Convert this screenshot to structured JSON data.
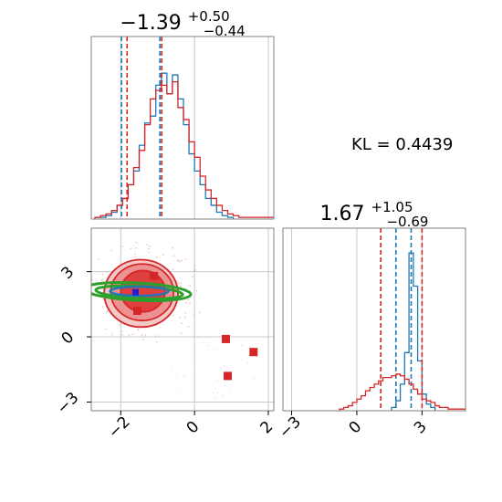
{
  "colors": {
    "blue": "#1f77b4",
    "red": "#d62728",
    "green": "#2ca02c",
    "grid": "#c8c8c8",
    "frame": "#808080"
  },
  "annotation": {
    "kl": "KL = 0.4439"
  },
  "chart_data": [
    {
      "type": "histogram",
      "panel": "top-left marginal (parameter 1)",
      "title": {
        "base": "−1.39",
        "sup": "+0.50",
        "sub": "−0.44"
      },
      "xlim": [
        -2.8,
        2.15
      ],
      "ylim": [
        0,
        1
      ],
      "grid": true,
      "bin_width": 0.15,
      "series": [
        {
          "color": "#1f77b4",
          "bin_start": -2.7,
          "heights": [
            0.01,
            0.01,
            0.02,
            0.04,
            0.08,
            0.12,
            0.2,
            0.28,
            0.43,
            0.56,
            0.6,
            0.78,
            0.85,
            0.73,
            0.84,
            0.7,
            0.55,
            0.38,
            0.28,
            0.2,
            0.12,
            0.08,
            0.04,
            0.02,
            0.01
          ],
          "quantile_lines": [
            -1.98,
            -0.94
          ]
        },
        {
          "color": "#d62728",
          "bin_start": -2.7,
          "heights": [
            0.01,
            0.02,
            0.03,
            0.05,
            0.08,
            0.12,
            0.2,
            0.3,
            0.4,
            0.55,
            0.7,
            0.75,
            0.78,
            0.73,
            0.8,
            0.65,
            0.58,
            0.45,
            0.36,
            0.25,
            0.17,
            0.12,
            0.08,
            0.05,
            0.03,
            0.02,
            0.01,
            0.01,
            0.01,
            0.01,
            0.01,
            0.01,
            0.01
          ],
          "quantile_lines": [
            -1.83,
            -0.89
          ]
        }
      ]
    },
    {
      "type": "contour-scatter",
      "panel": "bottom-left joint (parameter 1 vs parameter 2)",
      "xlim": [
        -2.8,
        2.15
      ],
      "ylim": [
        -3.4,
        5.0
      ],
      "x_ticks": [
        "−2",
        "0",
        "2"
      ],
      "y_ticks": [
        "−3",
        "0",
        "3"
      ],
      "grid": true,
      "red_contours": [
        {
          "level": "outer",
          "cx": -1.45,
          "cy": 2.0,
          "rx": 1.0,
          "ry": 1.55
        },
        {
          "level": "middle",
          "cx": -1.42,
          "cy": 2.05,
          "rx": 0.85,
          "ry": 1.3
        },
        {
          "level": "inner",
          "cx": -1.4,
          "cy": 2.1,
          "rx": 0.6,
          "ry": 0.95
        }
      ],
      "green_ellipses": [
        {
          "cx": -1.55,
          "cy": 2.08,
          "rx": 1.45,
          "ry": 0.4
        },
        {
          "cx": -1.5,
          "cy": 2.05,
          "rx": 1.18,
          "ry": 0.28
        }
      ],
      "red_markers": [
        {
          "x": -1.1,
          "y": 2.8
        },
        {
          "x": -1.55,
          "y": 1.2
        },
        {
          "x": 0.85,
          "y": -0.1
        },
        {
          "x": 1.6,
          "y": -0.7
        },
        {
          "x": 0.9,
          "y": -1.8
        }
      ],
      "blue_markers": [
        {
          "x": -1.6,
          "y": 2.05
        }
      ]
    },
    {
      "type": "histogram",
      "panel": "bottom-right marginal (parameter 2)",
      "title": {
        "base": "1.67",
        "sup": "+1.05",
        "sub": "−0.69"
      },
      "xlim": [
        -3.4,
        5.0
      ],
      "ylim": [
        0,
        1
      ],
      "x_ticks": [
        "−3",
        "0",
        "3"
      ],
      "grid": true,
      "bin_width": 0.2,
      "series": [
        {
          "color": "#1f77b4",
          "bin_start": 1.6,
          "heights": [
            0.02,
            0.06,
            0.16,
            0.35,
            0.95,
            0.75,
            0.3,
            0.1,
            0.04,
            0.02
          ],
          "quantile_lines": [
            1.8,
            2.5
          ]
        },
        {
          "color": "#d62728",
          "bin_start": -0.8,
          "heights": [
            0.01,
            0.02,
            0.03,
            0.05,
            0.07,
            0.09,
            0.12,
            0.14,
            0.16,
            0.18,
            0.2,
            0.2,
            0.21,
            0.22,
            0.21,
            0.19,
            0.16,
            0.13,
            0.1,
            0.07,
            0.06,
            0.05,
            0.03,
            0.02,
            0.02,
            0.01,
            0.01,
            0.01,
            0.01
          ],
          "quantile_lines": [
            1.1,
            3.0
          ]
        }
      ]
    }
  ]
}
